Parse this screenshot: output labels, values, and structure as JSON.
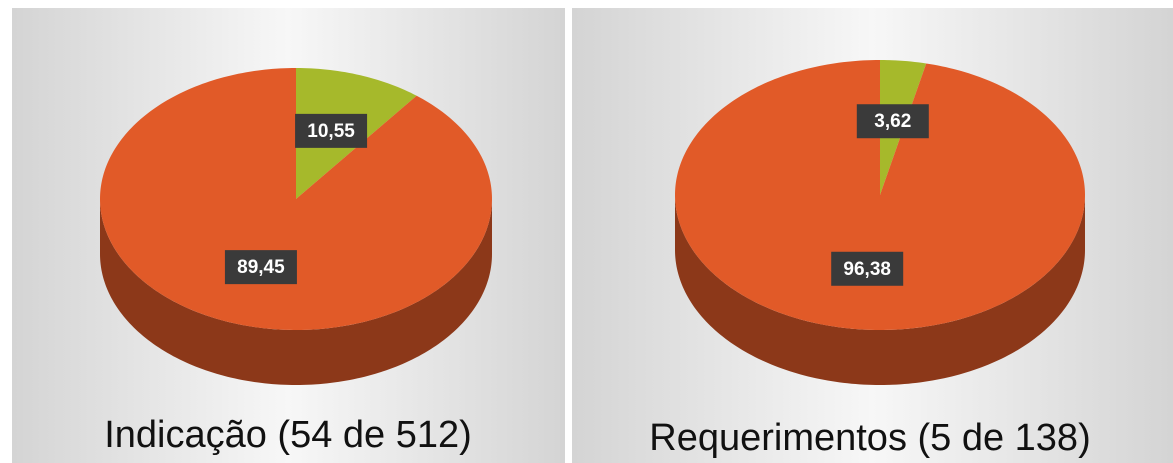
{
  "chart_data": [
    {
      "type": "pie",
      "title": "Indicação (54 de 512)",
      "values": [
        10.55,
        89.45
      ],
      "value_labels": [
        "10,55",
        "89,45"
      ],
      "colors": [
        "#a6b92b",
        "#e15a28"
      ]
    },
    {
      "type": "pie",
      "title": "Requerimentos (5 de 138)",
      "values": [
        3.62,
        96.38
      ],
      "value_labels": [
        "3,62",
        "96,38"
      ],
      "colors": [
        "#a6b92b",
        "#e15a28"
      ]
    }
  ]
}
